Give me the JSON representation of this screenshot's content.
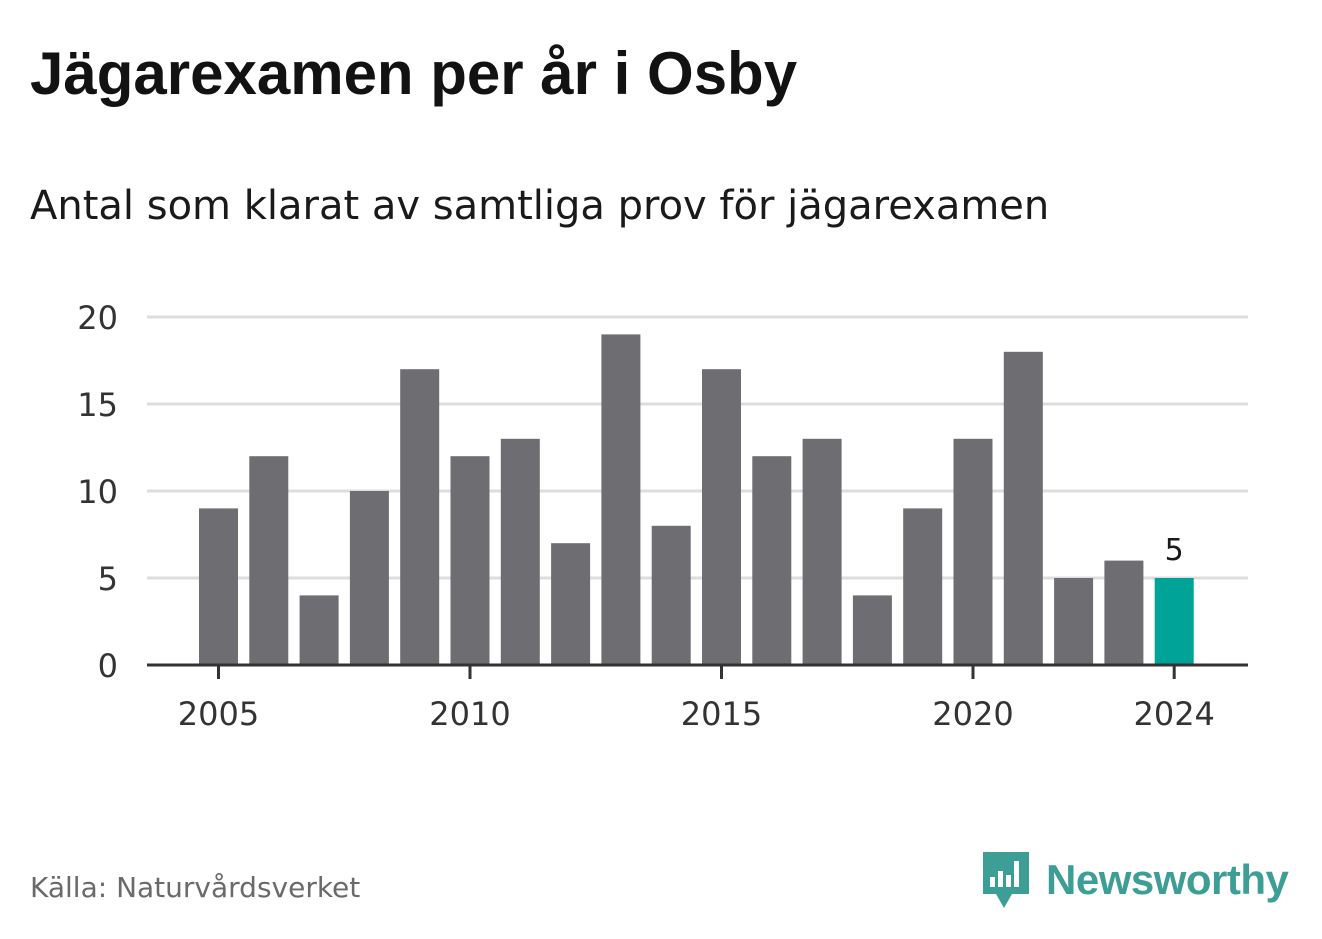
{
  "title": "Jägarexamen per år i Osby",
  "subtitle": "Antal som klarat av samtliga prov för jägarexamen",
  "source": "Källa: Naturvårdsverket",
  "brand": {
    "name": "Newsworthy",
    "logo_icon": "newsworthy-bar-chart-logo-icon",
    "color": "#3d9e96"
  },
  "colors": {
    "bar": "#6e6d72",
    "highlight": "#00a398",
    "grid": "#dddddd",
    "axis": "#333333",
    "tick_text": "#333333"
  },
  "chart_data": {
    "type": "bar",
    "title": "Jägarexamen per år i Osby",
    "subtitle": "Antal som klarat av samtliga prov för jägarexamen",
    "xlabel": "",
    "ylabel": "",
    "x": [
      2005,
      2006,
      2007,
      2008,
      2009,
      2010,
      2011,
      2012,
      2013,
      2014,
      2015,
      2016,
      2017,
      2018,
      2019,
      2020,
      2021,
      2022,
      2023,
      2024
    ],
    "values": [
      9,
      12,
      4,
      10,
      17,
      12,
      13,
      7,
      19,
      8,
      17,
      12,
      13,
      4,
      9,
      13,
      18,
      5,
      6,
      5
    ],
    "x_ticks": [
      "2005",
      "2010",
      "2015",
      "2020",
      "2024"
    ],
    "y_ticks": [
      0,
      5,
      10,
      15,
      20
    ],
    "ylim": [
      0,
      20
    ],
    "grid": true,
    "highlight": {
      "x": 2024,
      "label": "5"
    }
  }
}
